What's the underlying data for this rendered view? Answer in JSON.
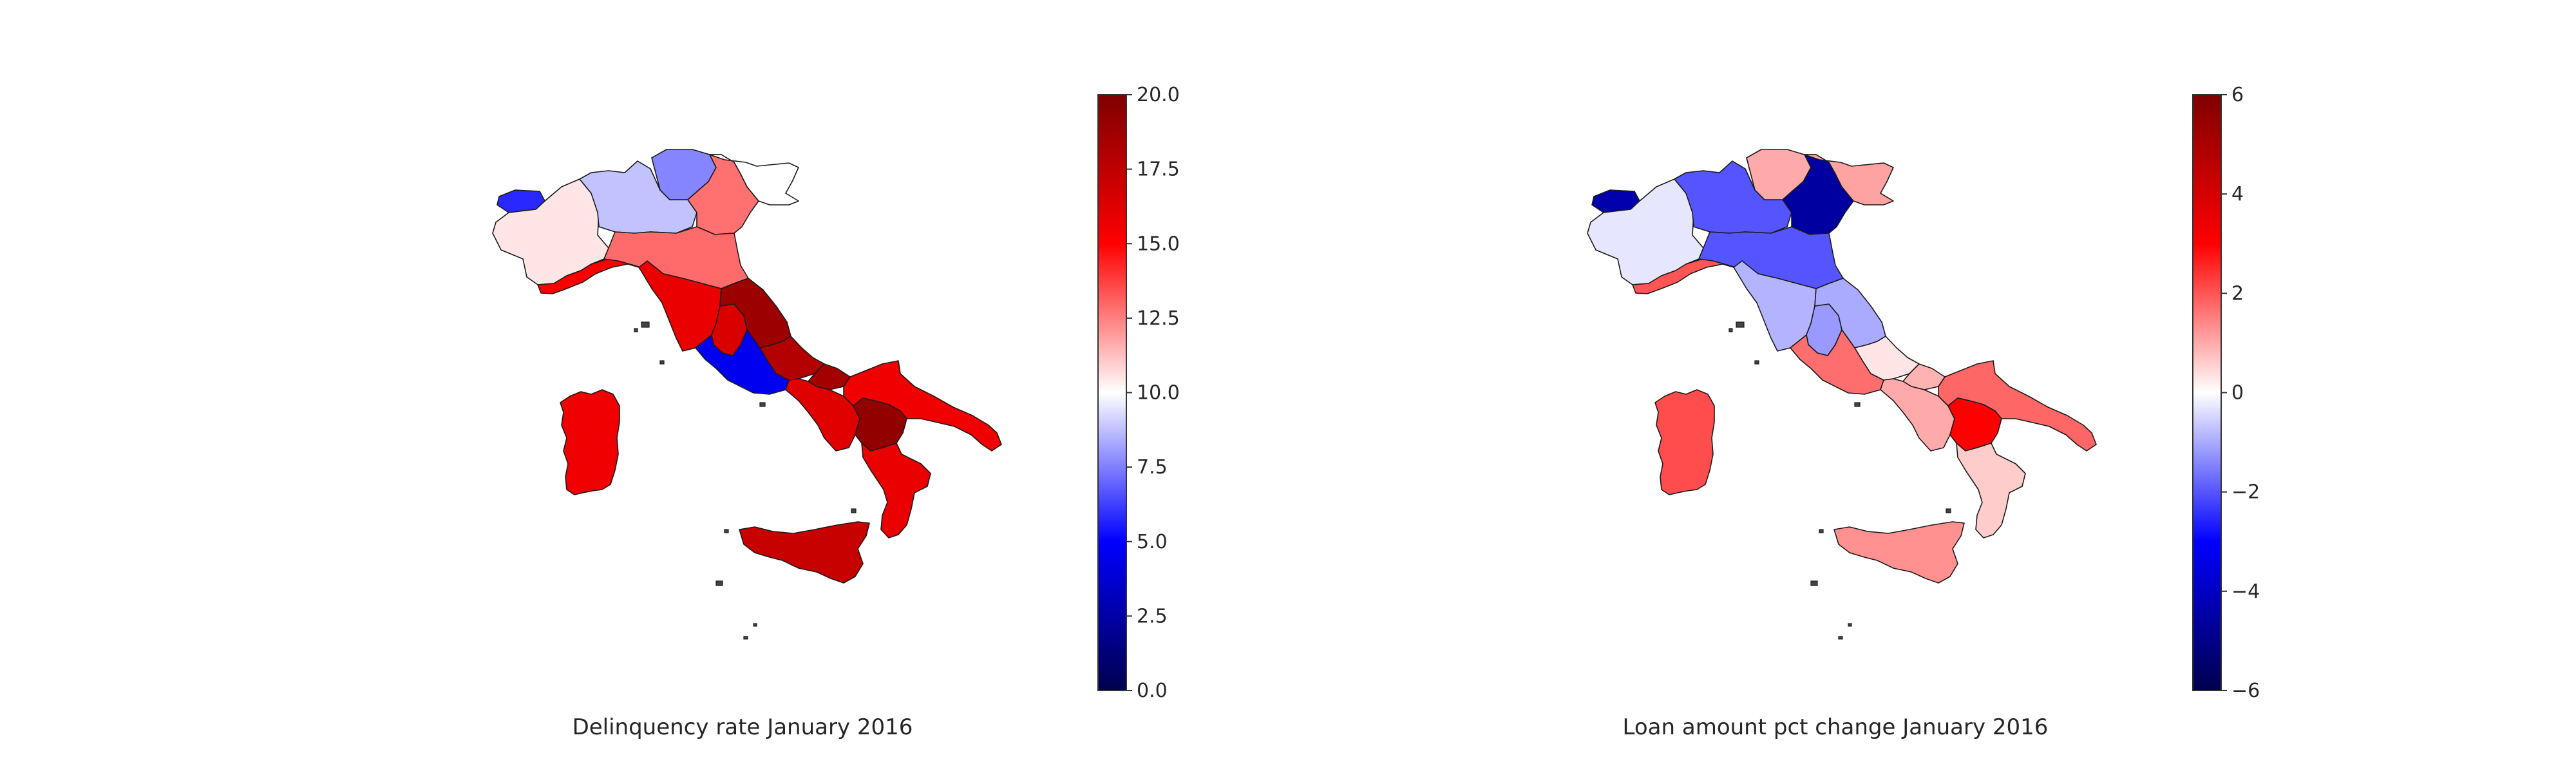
{
  "maps": [
    {
      "title": "Delinquency rate January 2016",
      "colormap": "seismic",
      "vmin": 0,
      "vmax": 20,
      "colorbar_ticks": [
        "0.0",
        "2.5",
        "5.0",
        "7.5",
        "10.0",
        "12.5",
        "15.0",
        "17.5",
        "20.0"
      ],
      "regions": {
        "valle-daosta": 5.8,
        "piemonte": 10.5,
        "lombardia": 8.8,
        "trentino-alto-adige": 7.6,
        "veneto": 12.8,
        "friuli-venezia-giulia": 10.0,
        "liguria": 15.2,
        "emilia-romagna": 12.9,
        "toscana": 15.8,
        "umbria": 16.4,
        "marche": 18.9,
        "lazio": 4.6,
        "abruzzo": 18.0,
        "molise": 18.6,
        "campania": 16.2,
        "puglia": 15.6,
        "basilicata": 19.3,
        "calabria": 15.8,
        "sicilia": 17.2,
        "sardegna": 15.6
      }
    },
    {
      "title": "Loan amount pct change January 2016",
      "colormap": "seismic",
      "vmin": -6,
      "vmax": 6,
      "colorbar_ticks": [
        "−6",
        "−4",
        "−2",
        "0",
        "2",
        "4",
        "6"
      ],
      "regions": {
        "valle-daosta": -4.4,
        "piemonte": -0.3,
        "lombardia": -2.0,
        "trentino-alto-adige": 1.0,
        "veneto": -4.6,
        "friuli-venezia-giulia": 1.1,
        "liguria": 2.0,
        "emilia-romagna": -2.0,
        "toscana": -0.9,
        "umbria": -1.2,
        "marche": -1.0,
        "lazio": 1.7,
        "abruzzo": 0.3,
        "molise": 0.9,
        "campania": 1.0,
        "puglia": 1.8,
        "basilicata": 3.0,
        "calabria": 0.6,
        "sicilia": 1.3,
        "sardegna": 2.1
      }
    }
  ]
}
